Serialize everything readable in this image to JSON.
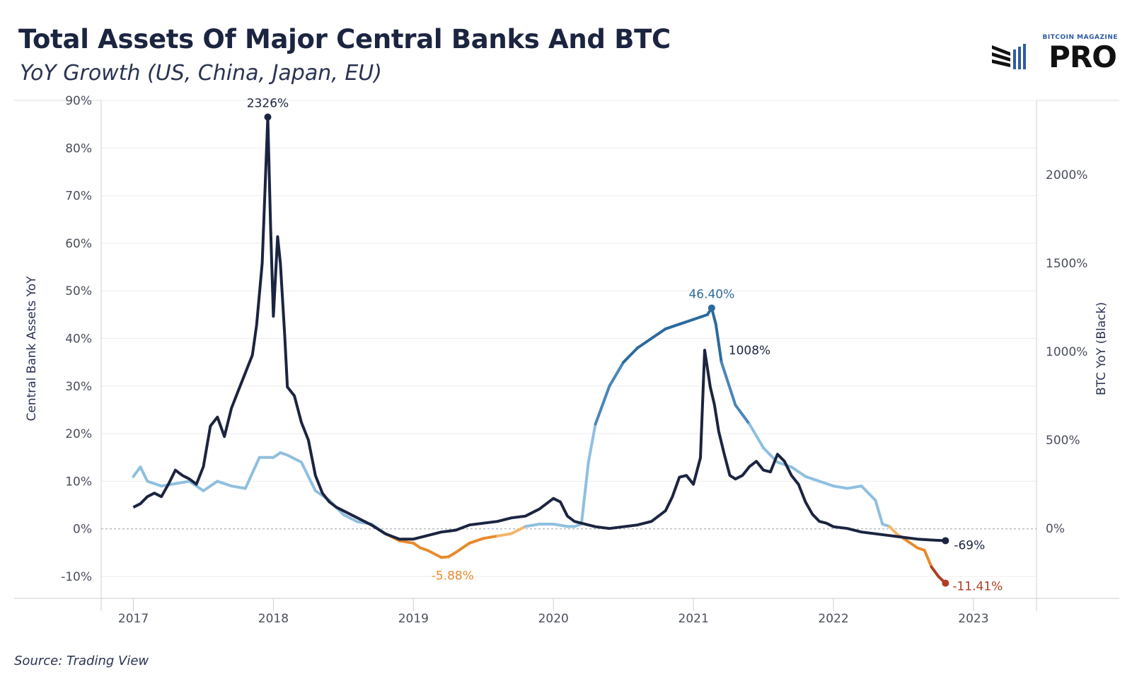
{
  "header": {
    "title": "Total Assets Of Major Central Banks And BTC",
    "subtitle": "YoY Growth (US, China, Japan, EU)"
  },
  "logo": {
    "small_text": "BITCOIN MAGAZINE",
    "main_text": "PRO"
  },
  "footer": {
    "source": "Source: Trading View"
  },
  "colors": {
    "btc_line": "#1b2440",
    "cb_light": "#8fbfdf",
    "cb_mid": "#4a86b8",
    "cb_dark": "#2c6a9c",
    "cb_orange": "#e88a2e",
    "cb_light_orange": "#f2b56a",
    "cb_red": "#b03c22",
    "cb_neutral": "#d7d0c0",
    "zero_line": "#9aa0a6",
    "grid": "#ececec"
  },
  "chart_data": {
    "type": "line",
    "y_left_label": "Central Bank Assets YoY",
    "y_right_label": "BTC YoY (Black)",
    "y_left_ticks": [
      "90%",
      "80%",
      "70%",
      "60%",
      "50%",
      "40%",
      "30%",
      "20%",
      "10%",
      "0%",
      "-10%"
    ],
    "y_left_range": [
      -14.6,
      90
    ],
    "y_right_ticks": [
      "2000%",
      "1500%",
      "1000%",
      "500%",
      "0%"
    ],
    "y_right_range": [
      -395,
      2420
    ],
    "x_ticks": [
      "2017",
      "2018",
      "2019",
      "2020",
      "2021",
      "2022",
      "2023"
    ],
    "x_range": [
      2016.77,
      2023.45
    ],
    "grid": true,
    "series": [
      {
        "axis": "left",
        "x": [
          2017.0,
          2017.05,
          2017.1,
          2017.2,
          2017.3,
          2017.4,
          2017.5,
          2017.6,
          2017.7,
          2017.8,
          2017.9,
          2018.0,
          2018.05,
          2018.1,
          2018.2,
          2018.3,
          2018.4,
          2018.5,
          2018.6,
          2018.7,
          2018.8,
          2018.9,
          2019.0,
          2019.05,
          2019.1,
          2019.2,
          2019.25,
          2019.3,
          2019.4,
          2019.5,
          2019.6,
          2019.7,
          2019.8,
          2019.9,
          2020.0,
          2020.1,
          2020.15,
          2020.2,
          2020.25,
          2020.3,
          2020.4,
          2020.5,
          2020.6,
          2020.7,
          2020.8,
          2020.9,
          2021.0,
          2021.05,
          2021.1,
          2021.13,
          2021.16,
          2021.2,
          2021.3,
          2021.4,
          2021.5,
          2021.6,
          2021.7,
          2021.8,
          2021.9,
          2022.0,
          2022.1,
          2022.2,
          2022.3,
          2022.35,
          2022.4,
          2022.45,
          2022.5,
          2022.6,
          2022.65,
          2022.7,
          2022.75,
          2022.8
        ],
        "values": [
          11,
          13,
          10,
          9,
          9.5,
          10,
          8,
          10,
          9,
          8.5,
          15,
          15,
          16,
          15.5,
          14,
          8,
          6,
          3,
          1.5,
          1,
          -1,
          -2.5,
          -3,
          -4,
          -4.5,
          -6,
          -5.88,
          -5,
          -3,
          -2,
          -1.5,
          -1,
          0.5,
          1,
          1,
          0.5,
          0.5,
          1,
          14,
          22,
          30,
          35,
          38,
          40,
          42,
          43,
          44,
          44.5,
          45,
          46.4,
          43,
          35,
          26,
          22,
          17,
          14,
          13,
          11,
          10,
          9,
          8.5,
          9,
          6,
          1,
          0.5,
          -1,
          -2,
          -4,
          -4.5,
          -8,
          -10,
          -11.41
        ]
      },
      {
        "axis": "right",
        "x": [
          2017.0,
          2017.05,
          2017.1,
          2017.15,
          2017.2,
          2017.25,
          2017.3,
          2017.35,
          2017.4,
          2017.45,
          2017.5,
          2017.55,
          2017.6,
          2017.65,
          2017.7,
          2017.75,
          2017.8,
          2017.85,
          2017.88,
          2017.92,
          2017.96,
          2017.98,
          2018.0,
          2018.03,
          2018.05,
          2018.08,
          2018.1,
          2018.15,
          2018.2,
          2018.25,
          2018.3,
          2018.35,
          2018.4,
          2018.45,
          2018.5,
          2018.6,
          2018.7,
          2018.8,
          2018.9,
          2019.0,
          2019.1,
          2019.2,
          2019.3,
          2019.4,
          2019.5,
          2019.6,
          2019.7,
          2019.8,
          2019.9,
          2020.0,
          2020.05,
          2020.1,
          2020.15,
          2020.2,
          2020.3,
          2020.4,
          2020.5,
          2020.6,
          2020.7,
          2020.8,
          2020.85,
          2020.9,
          2020.95,
          2021.0,
          2021.05,
          2021.08,
          2021.12,
          2021.15,
          2021.18,
          2021.22,
          2021.26,
          2021.3,
          2021.35,
          2021.4,
          2021.45,
          2021.5,
          2021.55,
          2021.6,
          2021.65,
          2021.7,
          2021.75,
          2021.8,
          2021.85,
          2021.9,
          2021.95,
          2022.0,
          2022.1,
          2022.2,
          2022.3,
          2022.4,
          2022.5,
          2022.6,
          2022.7,
          2022.8
        ],
        "values": [
          120,
          140,
          180,
          200,
          180,
          250,
          330,
          300,
          280,
          250,
          350,
          580,
          630,
          520,
          680,
          780,
          880,
          980,
          1150,
          1500,
          2326,
          1700,
          1200,
          1650,
          1500,
          1100,
          800,
          750,
          600,
          500,
          300,
          200,
          150,
          120,
          100,
          60,
          20,
          -30,
          -60,
          -60,
          -40,
          -20,
          -10,
          20,
          30,
          40,
          60,
          70,
          110,
          170,
          150,
          70,
          40,
          30,
          10,
          0,
          10,
          20,
          40,
          100,
          180,
          290,
          300,
          250,
          400,
          1008,
          800,
          700,
          550,
          420,
          300,
          280,
          300,
          350,
          380,
          330,
          320,
          420,
          380,
          300,
          250,
          150,
          80,
          40,
          30,
          10,
          0,
          -20,
          -30,
          -40,
          -50,
          -60,
          -65,
          -69
        ]
      }
    ],
    "annotations": [
      {
        "text": "2326%",
        "x": 2017.96,
        "y": 2326,
        "axis": "right"
      },
      {
        "text": "1008%",
        "x": 2021.16,
        "y": 1008,
        "axis": "right"
      },
      {
        "text": "-69%",
        "x": 2022.8,
        "y": -69,
        "axis": "right"
      },
      {
        "text": "46.40%",
        "x": 2021.13,
        "y": 46.4,
        "axis": "left"
      },
      {
        "text": "-5.88%",
        "x": 2019.25,
        "y": -5.88,
        "axis": "left"
      },
      {
        "text": "-11.41%",
        "x": 2022.8,
        "y": -11.41,
        "axis": "left"
      }
    ]
  }
}
